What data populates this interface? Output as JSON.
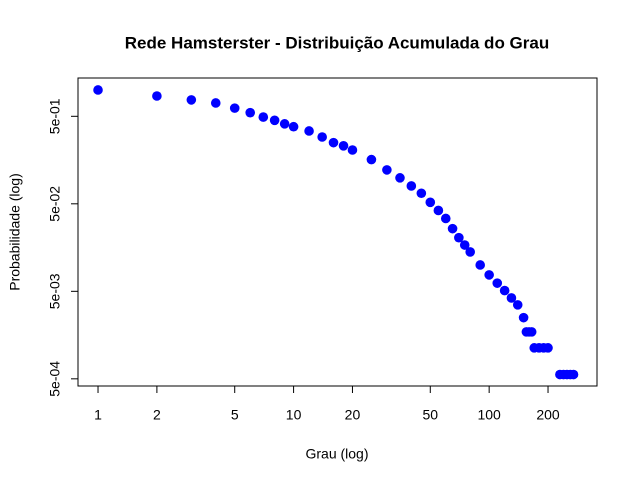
{
  "chart_data": {
    "type": "scatter",
    "title": "Rede Hamsterster - Distribuição Acumulada do Grau",
    "x_label": "Grau (log)",
    "y_label": "Probabilidade (log)",
    "log_x": true,
    "log_y": true,
    "color": "#0000ff",
    "x": [
      1,
      2,
      3,
      4,
      5,
      6,
      7,
      8,
      9,
      10,
      12,
      14,
      16,
      18,
      20,
      25,
      30,
      35,
      40,
      45,
      50,
      55,
      60,
      65,
      70,
      75,
      80,
      90,
      100,
      110,
      120,
      130,
      140,
      150,
      155,
      160,
      165,
      170,
      180,
      190,
      200,
      230,
      240,
      250,
      260,
      270
    ],
    "values": [
      1.0,
      0.853,
      0.77,
      0.71,
      0.62,
      0.55,
      0.49,
      0.45,
      0.41,
      0.38,
      0.34,
      0.29,
      0.25,
      0.23,
      0.206,
      0.16,
      0.122,
      0.099,
      0.08,
      0.066,
      0.052,
      0.042,
      0.034,
      0.026,
      0.0205,
      0.0169,
      0.0141,
      0.01,
      0.0077,
      0.0062,
      0.0051,
      0.0042,
      0.0035,
      0.0025,
      0.00172,
      0.00172,
      0.00172,
      0.00113,
      0.00113,
      0.00113,
      0.00113,
      0.00056,
      0.00056,
      0.00056,
      0.00056,
      0.00056
    ],
    "xlim": [
      0.79,
      356
    ],
    "ylim": [
      0.000414,
      1.37
    ],
    "xticks": [
      1,
      2,
      5,
      10,
      20,
      50,
      100,
      200
    ],
    "yticks": [
      {
        "value": 0.5,
        "label": "5e-01"
      },
      {
        "value": 0.05,
        "label": "5e-02"
      },
      {
        "value": 0.005,
        "label": "5e-03"
      },
      {
        "value": 0.0005,
        "label": "5e-04"
      }
    ]
  }
}
